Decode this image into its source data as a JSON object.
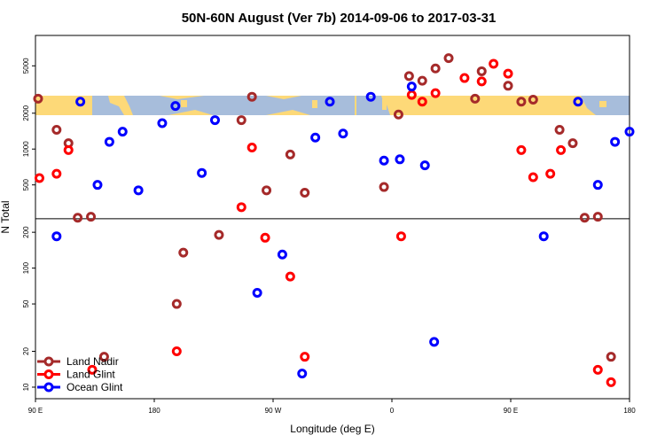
{
  "chart_data": {
    "type": "scatter",
    "title": "50N-60N August (Ver 7b)   2014-09-06 to 2017-03-31",
    "xlabel": "Longitude (deg E)",
    "ylabel": "N Total",
    "y_scale": "log",
    "xlim": [
      90,
      540
    ],
    "ylim": [
      8,
      9000
    ],
    "x_ticks": [
      {
        "value": 90,
        "label": "90 E"
      },
      {
        "value": 180,
        "label": "180"
      },
      {
        "value": 270,
        "label": "90 W"
      },
      {
        "value": 360,
        "label": "0"
      },
      {
        "value": 450,
        "label": "90 E"
      },
      {
        "value": 540,
        "label": "180"
      }
    ],
    "y_ticks": [
      10,
      20,
      50,
      100,
      200,
      500,
      1000,
      2000,
      5000
    ],
    "split_value": 260,
    "land_strip": {
      "lat_range": [
        "50N",
        "60N"
      ],
      "ocean_color": "#A7BDDB",
      "land_color": "#FDD978"
    },
    "legend": [
      {
        "label": "Land Nadir",
        "color": "#A52A2A"
      },
      {
        "label": "Land Glint",
        "color": "#FF0000"
      },
      {
        "label": "Ocean Glint",
        "color": "#0000FF"
      }
    ],
    "series": [
      {
        "name": "Land Nadir",
        "color": "#A52A2A",
        "points": [
          [
            92,
            2650
          ],
          [
            106,
            1450
          ],
          [
            115,
            1120
          ],
          [
            122,
            265
          ],
          [
            132,
            270
          ],
          [
            142,
            18
          ],
          [
            197,
            50
          ],
          [
            202,
            135
          ],
          [
            229,
            190
          ],
          [
            246,
            1750
          ],
          [
            254,
            2750
          ],
          [
            265,
            450
          ],
          [
            283,
            900
          ],
          [
            294,
            430
          ],
          [
            354,
            480
          ],
          [
            365,
            1950
          ],
          [
            373,
            4100
          ],
          [
            383,
            3750
          ],
          [
            393,
            4750
          ],
          [
            403,
            5800
          ],
          [
            423,
            2650
          ],
          [
            428,
            4500
          ],
          [
            448,
            3400
          ],
          [
            458,
            2500
          ],
          [
            467,
            2600
          ],
          [
            487,
            1450
          ],
          [
            497,
            1120
          ],
          [
            506,
            265
          ],
          [
            516,
            270
          ],
          [
            526,
            18
          ]
        ]
      },
      {
        "name": "Land Glint",
        "color": "#FF0000",
        "points": [
          [
            93,
            570
          ],
          [
            106,
            620
          ],
          [
            115,
            980
          ],
          [
            133,
            14
          ],
          [
            197,
            20
          ],
          [
            246,
            325
          ],
          [
            254,
            1030
          ],
          [
            264,
            180
          ],
          [
            283,
            85
          ],
          [
            294,
            18
          ],
          [
            367,
            185
          ],
          [
            375,
            2850
          ],
          [
            383,
            2500
          ],
          [
            393,
            2950
          ],
          [
            415,
            3950
          ],
          [
            428,
            3700
          ],
          [
            437,
            5200
          ],
          [
            448,
            4300
          ],
          [
            458,
            980
          ],
          [
            467,
            580
          ],
          [
            480,
            620
          ],
          [
            488,
            980
          ],
          [
            516,
            14
          ],
          [
            526,
            11
          ]
        ]
      },
      {
        "name": "Ocean Glint",
        "color": "#0000FF",
        "points": [
          [
            106,
            185
          ],
          [
            124,
            2500
          ],
          [
            137,
            500
          ],
          [
            146,
            1150
          ],
          [
            156,
            1400
          ],
          [
            168,
            450
          ],
          [
            186,
            1650
          ],
          [
            196,
            2300
          ],
          [
            216,
            630
          ],
          [
            226,
            1750
          ],
          [
            258,
            62
          ],
          [
            277,
            130
          ],
          [
            292,
            13
          ],
          [
            302,
            1250
          ],
          [
            313,
            2500
          ],
          [
            323,
            1350
          ],
          [
            344,
            2750
          ],
          [
            354,
            800
          ],
          [
            366,
            820
          ],
          [
            375,
            3350
          ],
          [
            385,
            730
          ],
          [
            392,
            24
          ],
          [
            475,
            185
          ],
          [
            501,
            2500
          ],
          [
            516,
            500
          ],
          [
            529,
            1150
          ],
          [
            540,
            1400
          ]
        ]
      }
    ]
  }
}
